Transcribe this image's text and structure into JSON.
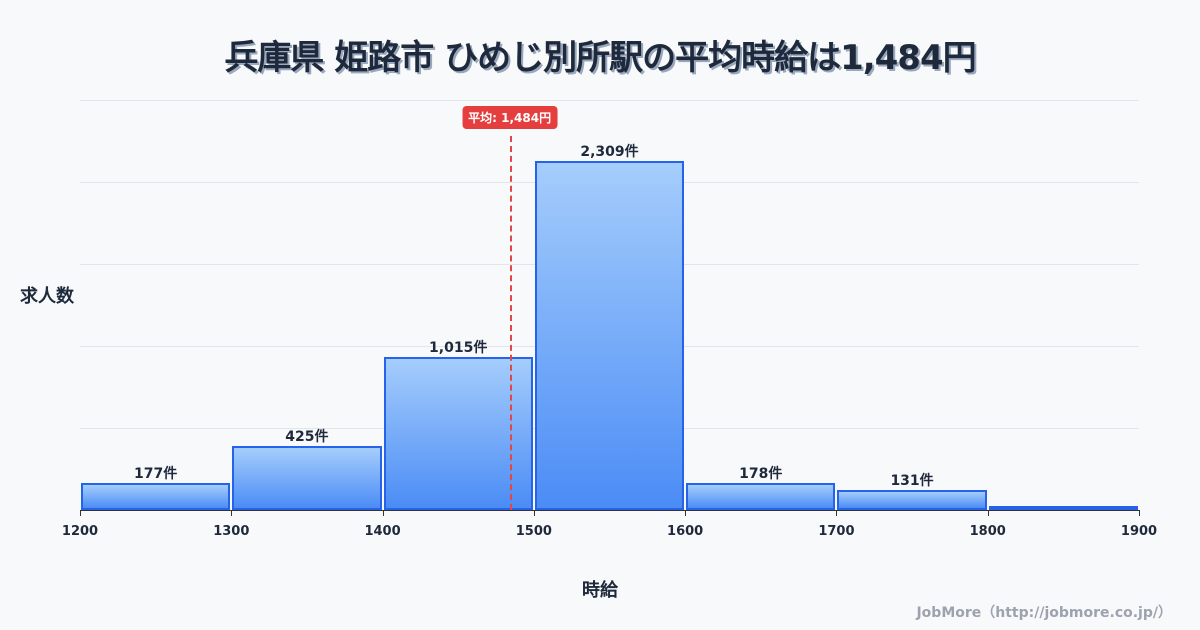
{
  "title": "兵庫県 姫路市 ひめじ別所駅の平均時給は1,484円",
  "credit": "JobMore（http://jobmore.co.jp/）",
  "chart_data": {
    "type": "bar",
    "title": "兵庫県 姫路市 ひめじ別所駅の平均時給は1,484円",
    "xlabel": "時給",
    "ylabel": "求人数",
    "categories": [
      "1200-1300",
      "1300-1400",
      "1400-1500",
      "1500-1600",
      "1600-1700",
      "1700-1800",
      "1800-1900"
    ],
    "bin_edges": [
      1200,
      1300,
      1400,
      1500,
      1600,
      1700,
      1800,
      1900
    ],
    "values": [
      177,
      425,
      1015,
      2309,
      178,
      131,
      20
    ],
    "labels": [
      "177件",
      "425件",
      "1,015件",
      "2,309件",
      "178件",
      "131件",
      ""
    ],
    "x_ticks": [
      "1200",
      "1300",
      "1400",
      "1500",
      "1600",
      "1700",
      "1800",
      "1900"
    ],
    "ylim": [
      0,
      2712
    ],
    "grid": true,
    "average": {
      "value": 1484,
      "label": "平均: 1,484円",
      "color": "#e53e3e"
    },
    "bar_color": "#2563eb"
  }
}
